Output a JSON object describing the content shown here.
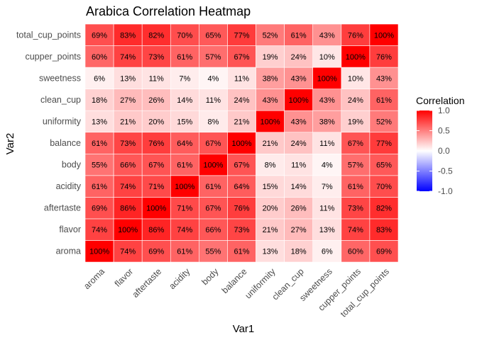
{
  "chart_data": {
    "type": "heatmap",
    "title": "Arabica Correlation Heatmap",
    "xlabel": "Var1",
    "ylabel": "Var2",
    "x": [
      "aroma",
      "flavor",
      "aftertaste",
      "acidity",
      "body",
      "balance",
      "uniformity",
      "clean_cup",
      "sweetness",
      "cupper_points",
      "total_cup_points"
    ],
    "y_bottom_to_top": [
      "aroma",
      "flavor",
      "aftertaste",
      "acidity",
      "body",
      "balance",
      "uniformity",
      "clean_cup",
      "sweetness",
      "cupper_points",
      "total_cup_points"
    ],
    "value_format": "percent",
    "values": [
      [
        100,
        74,
        69,
        61,
        55,
        61,
        13,
        18,
        6,
        60,
        69
      ],
      [
        74,
        100,
        86,
        74,
        66,
        73,
        21,
        27,
        13,
        74,
        83
      ],
      [
        69,
        86,
        100,
        71,
        67,
        76,
        20,
        26,
        11,
        73,
        82
      ],
      [
        61,
        74,
        71,
        100,
        61,
        64,
        15,
        14,
        7,
        61,
        70
      ],
      [
        55,
        66,
        67,
        61,
        100,
        67,
        8,
        11,
        4,
        57,
        65
      ],
      [
        61,
        73,
        76,
        64,
        67,
        100,
        21,
        24,
        11,
        67,
        77
      ],
      [
        13,
        21,
        20,
        15,
        8,
        21,
        100,
        43,
        38,
        19,
        52
      ],
      [
        18,
        27,
        26,
        14,
        11,
        24,
        43,
        100,
        43,
        24,
        61
      ],
      [
        6,
        13,
        11,
        7,
        4,
        11,
        38,
        43,
        100,
        10,
        43
      ],
      [
        60,
        74,
        73,
        61,
        57,
        67,
        19,
        24,
        10,
        100,
        76
      ],
      [
        69,
        83,
        82,
        70,
        65,
        77,
        52,
        61,
        43,
        76,
        100
      ]
    ],
    "legend": {
      "title": "Correlation",
      "range": [
        -1,
        1
      ],
      "ticks": [
        1.0,
        0.5,
        0.0,
        -0.5,
        -1.0
      ],
      "tick_labels": [
        "1.0",
        "0.5",
        "0.0",
        "-0.5",
        "-1.0"
      ],
      "colors": {
        "low": "#0000ff",
        "mid": "#ffffff",
        "high": "#ff0000"
      },
      "placement": "right"
    },
    "grid": false
  }
}
